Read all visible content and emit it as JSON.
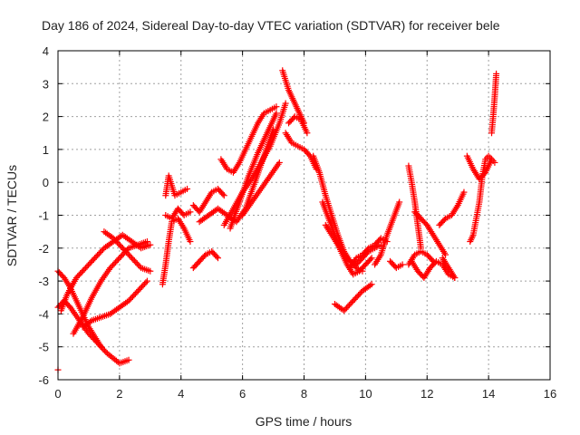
{
  "chart_data": {
    "type": "scatter",
    "title": "Day 186 of 2024, Sidereal Day-to-day VTEC variation (SDTVAR) for receiver bele",
    "xlabel": "GPS time / hours",
    "ylabel": "SDTVAR / TECUs",
    "xlim": [
      0,
      16
    ],
    "ylim": [
      -6,
      4
    ],
    "x_ticks": [
      "0",
      "2",
      "4",
      "6",
      "8",
      "10",
      "12",
      "14",
      "16"
    ],
    "y_ticks": [
      "-6",
      "-5",
      "-4",
      "-3",
      "-2",
      "-1",
      "0",
      "1",
      "2",
      "3",
      "4"
    ],
    "grid": true,
    "marker": "+",
    "color": "#ff0000",
    "series": [
      {
        "x": [
          0.0,
          0.2,
          0.4,
          0.6,
          0.8,
          1.0,
          1.2,
          1.4
        ],
        "y": [
          -2.7,
          -2.9,
          -3.2,
          -3.6,
          -4.0,
          -4.4,
          -4.7,
          -5.0
        ]
      },
      {
        "x": [
          0.0,
          0.2,
          0.4,
          0.7,
          1.0,
          1.3,
          1.6,
          2.0,
          2.3
        ],
        "y": [
          -3.8,
          -3.6,
          -3.8,
          -4.2,
          -4.6,
          -4.9,
          -5.2,
          -5.5,
          -5.4
        ]
      },
      {
        "x": [
          0.1,
          0.3,
          0.6,
          0.9,
          1.2,
          1.5,
          1.8,
          2.1,
          2.4,
          2.7,
          3.0
        ],
        "y": [
          -3.9,
          -3.4,
          -2.9,
          -2.6,
          -2.3,
          -2.0,
          -1.8,
          -1.6,
          -1.8,
          -2.0,
          -1.9
        ]
      },
      {
        "x": [
          0.5,
          0.8,
          1.1,
          1.4,
          1.7,
          2.0,
          2.3,
          2.6,
          2.9
        ],
        "y": [
          -4.6,
          -4.1,
          -3.5,
          -3.0,
          -2.6,
          -2.3,
          -2.0,
          -1.9,
          -1.8
        ]
      },
      {
        "x": [
          0.8,
          1.1,
          1.4,
          1.7,
          2.0,
          2.3,
          2.6,
          2.9
        ],
        "y": [
          -4.4,
          -4.2,
          -4.1,
          -4.0,
          -3.8,
          -3.6,
          -3.3,
          -3.0
        ]
      },
      {
        "x": [
          1.5,
          1.8,
          2.1,
          2.4,
          2.7,
          3.0
        ],
        "y": [
          -1.5,
          -1.7,
          -2.0,
          -2.3,
          -2.6,
          -2.7
        ]
      },
      {
        "x": [
          3.4,
          3.5,
          3.6,
          3.7,
          3.9,
          4.1,
          4.3
        ],
        "y": [
          -3.1,
          -2.5,
          -1.8,
          -1.2,
          -1.1,
          -1.4,
          -1.8
        ]
      },
      {
        "x": [
          3.5,
          3.6,
          3.8,
          4.0,
          4.2
        ],
        "y": [
          -0.4,
          0.2,
          -0.4,
          -0.3,
          -0.2
        ]
      },
      {
        "x": [
          3.5,
          3.7,
          3.9,
          4.1,
          4.3
        ],
        "y": [
          -1.0,
          -1.1,
          -0.8,
          -1.0,
          -0.9
        ]
      },
      {
        "x": [
          4.4,
          4.6,
          4.8,
          5.0,
          5.2
        ],
        "y": [
          -2.6,
          -2.4,
          -2.2,
          -2.1,
          -2.3
        ]
      },
      {
        "x": [
          4.4,
          4.6,
          4.8,
          5.0,
          5.2,
          5.4
        ],
        "y": [
          -0.7,
          -0.9,
          -0.6,
          -0.3,
          -0.2,
          -0.4
        ]
      },
      {
        "x": [
          4.6,
          4.9,
          5.2,
          5.5,
          5.8,
          6.1,
          6.4,
          6.7,
          7.0
        ],
        "y": [
          -1.2,
          -1.0,
          -0.8,
          -1.0,
          -1.2,
          -0.8,
          0.0,
          0.8,
          1.6
        ]
      },
      {
        "x": [
          5.3,
          5.5,
          5.7,
          5.9,
          6.1,
          6.3,
          6.5,
          6.7,
          6.9,
          7.1
        ],
        "y": [
          0.7,
          0.4,
          0.3,
          0.6,
          1.0,
          1.4,
          1.8,
          2.1,
          2.2,
          2.3
        ]
      },
      {
        "x": [
          5.4,
          5.7,
          6.0,
          6.3,
          6.6,
          6.9,
          7.2,
          7.4
        ],
        "y": [
          -1.3,
          -0.8,
          -0.3,
          0.1,
          0.6,
          1.1,
          1.8,
          2.4
        ]
      },
      {
        "x": [
          5.6,
          5.9,
          6.2,
          6.5,
          6.8,
          7.1
        ],
        "y": [
          -1.4,
          -0.6,
          0.2,
          0.9,
          1.5,
          2.1
        ]
      },
      {
        "x": [
          6.0,
          6.3,
          6.6,
          6.9,
          7.2
        ],
        "y": [
          -1.0,
          -0.6,
          -0.2,
          0.2,
          0.6
        ]
      },
      {
        "x": [
          7.3,
          7.4,
          7.5,
          7.6,
          7.7,
          7.8,
          7.9,
          8.0
        ],
        "y": [
          3.4,
          3.1,
          2.8,
          2.6,
          2.4,
          2.2,
          2.0,
          1.8
        ]
      },
      {
        "x": [
          7.4,
          7.6,
          7.8,
          8.0,
          8.2,
          8.4
        ],
        "y": [
          1.5,
          1.2,
          1.1,
          1.0,
          0.8,
          0.4
        ]
      },
      {
        "x": [
          7.5,
          7.7,
          7.9,
          8.1
        ],
        "y": [
          1.8,
          2.0,
          1.9,
          1.5
        ]
      },
      {
        "x": [
          8.3,
          8.5,
          8.7,
          8.9,
          9.1,
          9.3,
          9.5,
          9.7,
          9.9
        ],
        "y": [
          0.8,
          0.3,
          -0.4,
          -1.0,
          -1.6,
          -2.1,
          -2.4,
          -2.6,
          -2.7
        ]
      },
      {
        "x": [
          8.6,
          8.8,
          9.0,
          9.2,
          9.4,
          9.6,
          9.8,
          10.0,
          10.2
        ],
        "y": [
          -0.6,
          -1.1,
          -1.6,
          -2.1,
          -2.5,
          -2.8,
          -2.7,
          -2.5,
          -2.3
        ]
      },
      {
        "x": [
          8.7,
          8.9,
          9.1,
          9.3,
          9.5,
          9.7,
          9.9,
          10.1,
          10.3,
          10.5
        ],
        "y": [
          -1.3,
          -1.6,
          -1.9,
          -2.2,
          -2.4,
          -2.5,
          -2.3,
          -2.1,
          -2.0,
          -1.9
        ]
      },
      {
        "x": [
          9.0,
          9.3,
          9.6,
          9.9,
          10.2
        ],
        "y": [
          -3.7,
          -3.9,
          -3.6,
          -3.3,
          -3.1
        ]
      },
      {
        "x": [
          9.5,
          9.7,
          9.9,
          10.1,
          10.3,
          10.5,
          10.7
        ],
        "y": [
          -2.6,
          -2.3,
          -2.2,
          -2.0,
          -1.9,
          -1.7,
          -1.8
        ]
      },
      {
        "x": [
          10.3,
          10.5,
          10.7,
          10.9,
          11.1
        ],
        "y": [
          -2.5,
          -2.2,
          -1.6,
          -1.1,
          -0.6
        ]
      },
      {
        "x": [
          10.8,
          11.0,
          11.2
        ],
        "y": [
          -2.4,
          -2.6,
          -2.5
        ]
      },
      {
        "x": [
          11.4,
          11.5,
          11.6,
          11.7,
          11.8
        ],
        "y": [
          0.5,
          0.0,
          -0.6,
          -1.3,
          -2.0
        ]
      },
      {
        "x": [
          11.4,
          11.6,
          11.8,
          12.0,
          12.2
        ],
        "y": [
          -2.5,
          -2.2,
          -2.1,
          -2.2,
          -2.4
        ]
      },
      {
        "x": [
          11.5,
          11.7,
          11.9,
          12.1,
          12.3,
          12.5,
          12.7,
          12.9
        ],
        "y": [
          -2.4,
          -2.7,
          -2.9,
          -2.6,
          -2.4,
          -2.5,
          -2.8,
          -2.9
        ]
      },
      {
        "x": [
          11.6,
          11.8,
          12.0,
          12.2,
          12.4,
          12.6
        ],
        "y": [
          -0.9,
          -1.1,
          -1.3,
          -1.6,
          -1.9,
          -2.2
        ]
      },
      {
        "x": [
          12.4,
          12.6,
          12.8,
          13.0,
          13.2
        ],
        "y": [
          -1.3,
          -1.1,
          -1.0,
          -0.7,
          -0.3
        ]
      },
      {
        "x": [
          12.5,
          12.7,
          12.9
        ],
        "y": [
          -2.3,
          -2.6,
          -2.9
        ]
      },
      {
        "x": [
          13.4,
          13.5,
          13.6,
          13.7,
          13.8,
          13.9,
          14.0,
          14.1,
          14.2
        ],
        "y": [
          -1.8,
          -1.6,
          -1.1,
          -0.6,
          0.2,
          0.7,
          0.8,
          0.7,
          0.6
        ]
      },
      {
        "x": [
          13.3,
          13.5,
          13.7,
          13.9,
          14.1
        ],
        "y": [
          0.8,
          0.4,
          0.1,
          0.3,
          0.7
        ]
      },
      {
        "x": [
          14.1,
          14.15,
          14.2,
          14.25
        ],
        "y": [
          1.5,
          2.0,
          2.6,
          3.3
        ]
      },
      {
        "x": [
          0.0
        ],
        "y": [
          -5.7
        ]
      }
    ]
  }
}
